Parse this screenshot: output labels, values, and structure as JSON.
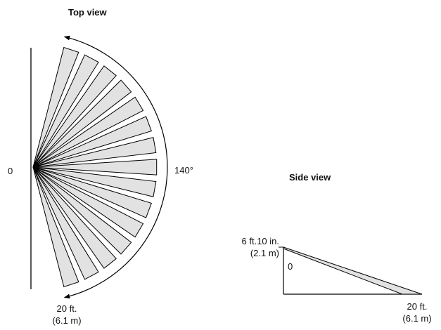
{
  "top_view": {
    "title": "Top view",
    "origin_label": "0",
    "angle_label": "140°",
    "range_label_line1": "20 ft.",
    "range_label_line2": "(6.1 m)",
    "zone_count": 15,
    "fill_color": "#e2e2e2",
    "stroke_color": "#000000"
  },
  "side_view": {
    "title": "Side view",
    "height_label_line1": "6 ft.10 in.",
    "height_label_line2": "(2.1 m)",
    "origin_label": "0",
    "range_label_line1": "20 ft.",
    "range_label_line2": "(6.1 m)",
    "fill_color": "#e2e2e2"
  }
}
